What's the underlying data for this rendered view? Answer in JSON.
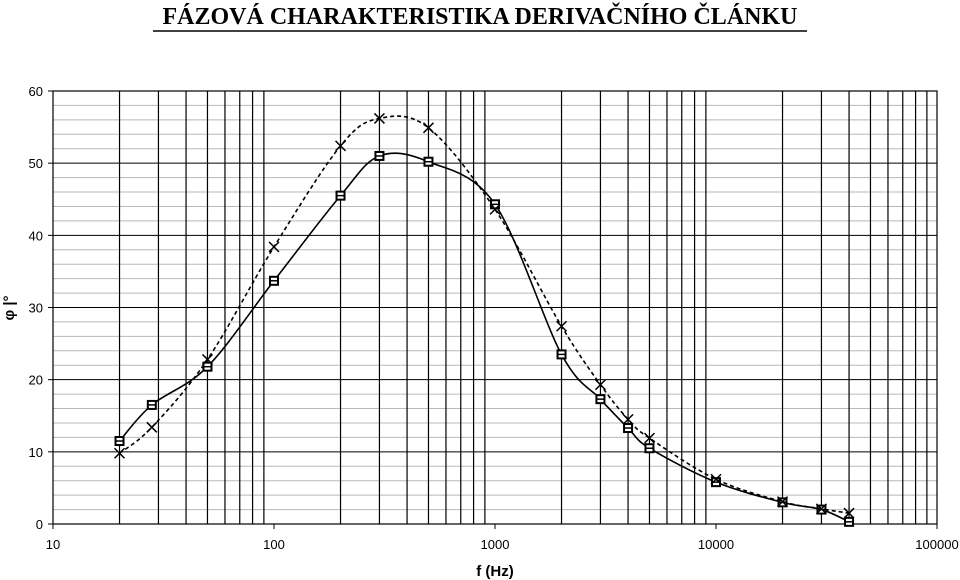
{
  "chart_data": {
    "type": "line",
    "title": "FÁZOVÁ CHARAKTERISTIKA DERIVAČNÍHO ČLÁNKU",
    "xlabel": "f (Hz)",
    "ylabel": "φ |°",
    "x_scale": "log",
    "xlim": [
      10,
      100000
    ],
    "ylim": [
      0,
      60
    ],
    "y_ticks": [
      "0",
      "10",
      "20",
      "30",
      "40",
      "50",
      "60"
    ],
    "x_ticks": [
      "10",
      "100",
      "1000",
      "10000",
      "100000"
    ],
    "grid": true,
    "series": [
      {
        "marker": "square",
        "line_style": "solid",
        "x": [
          20,
          28,
          50,
          100,
          200,
          300,
          500,
          1000,
          2000,
          3000,
          4000,
          5000,
          10000,
          20000,
          30000,
          40000
        ],
        "y": [
          11.5,
          16.5,
          21.8,
          33.7,
          45.5,
          51,
          50.2,
          44.3,
          23.5,
          17.3,
          13.3,
          10.5,
          5.8,
          3,
          2,
          0.3
        ]
      },
      {
        "marker": "x",
        "line_style": "dashed",
        "x": [
          20,
          28,
          50,
          100,
          200,
          300,
          500,
          1000,
          2000,
          3000,
          4000,
          5000,
          10000,
          20000,
          30000,
          40000
        ],
        "y": [
          9.8,
          13.4,
          22.8,
          38.4,
          52.4,
          56.2,
          54.9,
          43.6,
          27.4,
          19.3,
          14.5,
          11.9,
          6.2,
          3.1,
          2.1,
          1.5
        ]
      }
    ]
  }
}
